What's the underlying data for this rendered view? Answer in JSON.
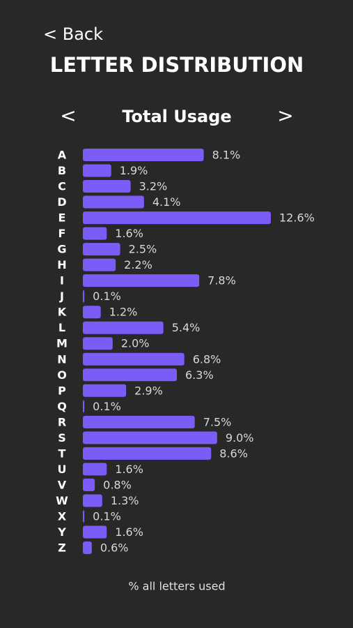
{
  "header": {
    "back": "< Back",
    "title": "LETTER DISTRIBUTION"
  },
  "nav": {
    "prev": "<",
    "label": "Total Usage",
    "next": ">"
  },
  "chart_data": {
    "type": "bar",
    "orientation": "horizontal",
    "color": "#7b5cf6",
    "categories": [
      "A",
      "B",
      "C",
      "D",
      "E",
      "F",
      "G",
      "H",
      "I",
      "J",
      "K",
      "L",
      "M",
      "N",
      "O",
      "P",
      "Q",
      "R",
      "S",
      "T",
      "U",
      "V",
      "W",
      "X",
      "Y",
      "Z"
    ],
    "values": [
      8.1,
      1.9,
      3.2,
      4.1,
      12.6,
      1.6,
      2.5,
      2.2,
      7.8,
      0.1,
      1.2,
      5.4,
      2.0,
      6.8,
      6.3,
      2.9,
      0.1,
      7.5,
      9.0,
      8.6,
      1.6,
      0.8,
      1.3,
      0.1,
      1.6,
      0.6
    ],
    "value_labels": [
      "8.1%",
      "1.9%",
      "3.2%",
      "4.1%",
      "12.6%",
      "1.6%",
      "2.5%",
      "2.2%",
      "7.8%",
      "0.1%",
      "1.2%",
      "5.4%",
      "2.0%",
      "6.8%",
      "6.3%",
      "2.9%",
      "0.1%",
      "7.5%",
      "9.0%",
      "8.6%",
      "1.6%",
      "0.8%",
      "1.3%",
      "0.1%",
      "1.6%",
      "0.6%"
    ],
    "caption": "% all letters used"
  }
}
